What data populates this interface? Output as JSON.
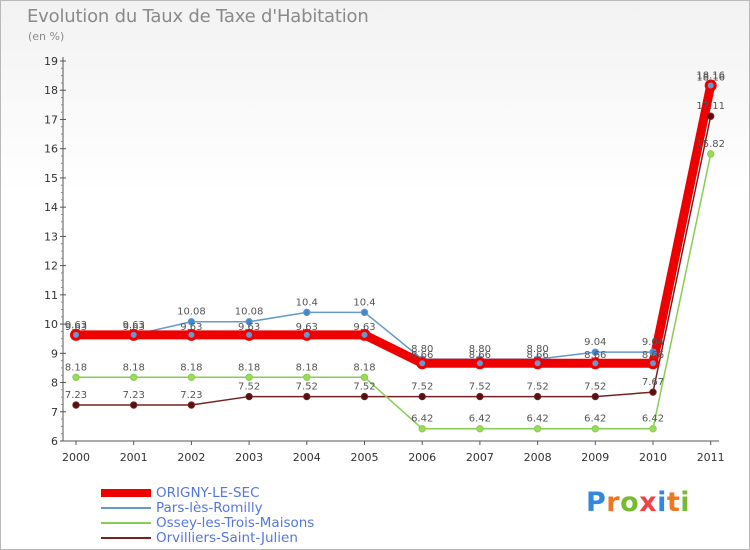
{
  "chart_data": {
    "type": "line",
    "title": "Evolution du Taux de Taxe d'Habitation",
    "subtitle": "(en %)",
    "xlabel": "",
    "ylabel": "",
    "ylim": [
      6,
      19
    ],
    "yticks": [
      "6",
      "7",
      "8",
      "9",
      "10",
      "11",
      "12",
      "13",
      "14",
      "15",
      "16",
      "17",
      "18",
      "19"
    ],
    "categories": [
      "2000",
      "2001",
      "2002",
      "2003",
      "2004",
      "2005",
      "2006",
      "2007",
      "2008",
      "2009",
      "2010",
      "2011"
    ],
    "grid": false,
    "series": [
      {
        "name": "ORIGNY-LE-SEC",
        "color": "#ee0000",
        "values": [
          9.63,
          9.63,
          9.63,
          9.63,
          9.63,
          9.63,
          8.66,
          8.66,
          8.66,
          8.66,
          8.66,
          18.16
        ],
        "labels": [
          "9.63",
          "9.63",
          "9.63",
          "9.63",
          "9.63",
          "9.63",
          "8.66",
          "8.66",
          "8.66",
          "8.66",
          "8.66",
          "18.16"
        ]
      },
      {
        "name": "Pars-lès-Romilly",
        "color": "#6699cc",
        "values": [
          9.63,
          9.63,
          10.08,
          10.08,
          10.4,
          10.4,
          8.8,
          8.8,
          8.8,
          9.04,
          9.04,
          18.16
        ],
        "labels": [
          "9.63",
          "9.63",
          "10.08",
          "10.08",
          "10.4",
          "10.4",
          "8.80",
          "8.80",
          "8.80",
          "9.04",
          "9.04",
          "18.16"
        ]
      },
      {
        "name": "Ossey-les-Trois-Maisons",
        "color": "#88cc55",
        "values": [
          8.18,
          8.18,
          8.18,
          8.18,
          8.18,
          8.18,
          6.42,
          6.42,
          6.42,
          6.42,
          6.42,
          15.82
        ],
        "labels": [
          "8.18",
          "8.18",
          "8.18",
          "8.18",
          "8.18",
          "8.18",
          "6.42",
          "6.42",
          "6.42",
          "6.42",
          "6.42",
          "15.82"
        ]
      },
      {
        "name": "Orvilliers-Saint-Julien",
        "color": "#772222",
        "values": [
          7.23,
          7.23,
          7.23,
          7.52,
          7.52,
          7.52,
          7.52,
          7.52,
          7.52,
          7.52,
          7.67,
          17.11
        ],
        "labels": [
          "7.23",
          "7.23",
          "7.23",
          "7.52",
          "7.52",
          "7.52",
          "7.52",
          "7.52",
          "7.52",
          "7.52",
          "7.67",
          "17.11"
        ]
      }
    ]
  },
  "legend": [
    {
      "label": "ORIGNY-LE-SEC",
      "color": "#ee0000"
    },
    {
      "label": "Pars-lès-Romilly",
      "color": "#6699cc"
    },
    {
      "label": "Ossey-les-Trois-Maisons",
      "color": "#88cc55"
    },
    {
      "label": "Orvilliers-Saint-Julien",
      "color": "#772222"
    }
  ],
  "logo": {
    "letters": [
      "P",
      "r",
      "o",
      "x",
      "i",
      "t",
      "i"
    ],
    "colors": [
      "#3388dd",
      "#ee7722",
      "#77bb33",
      "#ee4444",
      "#3388dd",
      "#ee7722",
      "#77bb33"
    ]
  }
}
